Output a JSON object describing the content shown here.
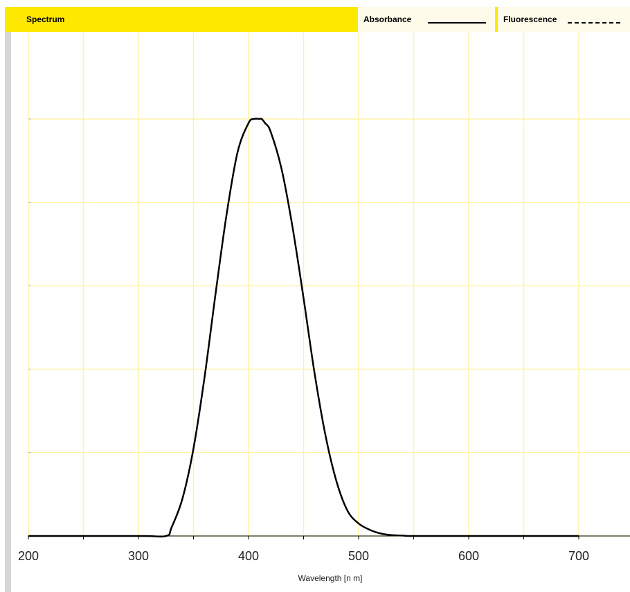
{
  "header": {
    "title": "Spectrum",
    "legend_absorbance": "Absorbance",
    "legend_fluorescence": "Fluorescence"
  },
  "colors": {
    "header_yellow": "#ffe800",
    "legend_bg": "#fffbea",
    "grid": "#fff3a8",
    "curve": "#000000",
    "left_bar": "#d6d6d6"
  },
  "chart_data": {
    "type": "line",
    "xlabel": "Wavelength [n m]",
    "ylabel": "",
    "xlim": [
      200,
      750
    ],
    "ylim": [
      0,
      1.0
    ],
    "x_ticks": [
      200,
      300,
      400,
      500,
      600,
      700
    ],
    "x_minor_ticks": [
      250,
      350,
      450,
      550,
      650,
      750
    ],
    "grid": true,
    "legend_placement": "top-right",
    "series": [
      {
        "name": "Absorbance",
        "style": "solid",
        "x": [
          200,
          300,
          325,
          330,
          340,
          350,
          360,
          370,
          380,
          390,
          400,
          405,
          410,
          412,
          415,
          420,
          430,
          440,
          450,
          460,
          470,
          480,
          490,
          500,
          510,
          520,
          530,
          540,
          550,
          600,
          650,
          700,
          750
        ],
        "y": [
          0,
          0,
          0,
          0.02,
          0.09,
          0.21,
          0.38,
          0.58,
          0.77,
          0.92,
          0.99,
          1.0,
          1.0,
          1.0,
          0.99,
          0.97,
          0.88,
          0.74,
          0.57,
          0.39,
          0.24,
          0.13,
          0.06,
          0.03,
          0.015,
          0.006,
          0.002,
          0.001,
          0,
          0,
          0,
          0,
          0
        ]
      }
    ]
  }
}
